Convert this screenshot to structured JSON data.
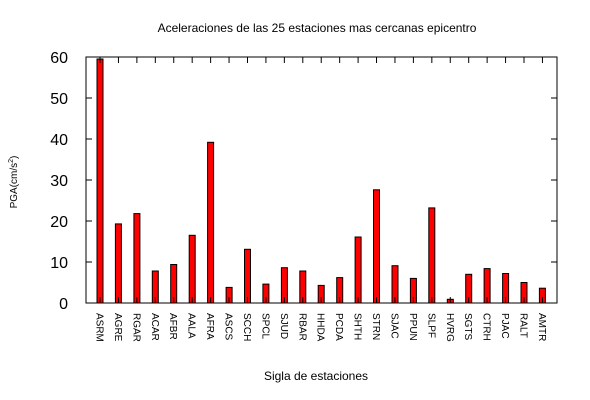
{
  "chart_data": {
    "type": "bar",
    "title": "Aceleraciones de las 25 estaciones mas cercanas epicentro",
    "xlabel": "Sigla de estaciones",
    "ylabel": {
      "base": "PGA(cm/s",
      "sup": "2",
      "close": ")"
    },
    "ylim": [
      0,
      60
    ],
    "yticks": [
      "0",
      "10",
      "20",
      "30",
      "40",
      "50",
      "60"
    ],
    "grid": false,
    "legend": "none",
    "categories": [
      "ASRM",
      "AGRE",
      "RGAR",
      "ACAR",
      "AFBR",
      "AALA",
      "AFRA",
      "ASCS",
      "SCCH",
      "SPCL",
      "SJUD",
      "RBAR",
      "HHDA",
      "PCDA",
      "SHTH",
      "STRN",
      "SJAC",
      "PPUN",
      "SLPF",
      "HVRG",
      "SGTS",
      "CTRH",
      "PJAC",
      "RALT",
      "AMTR"
    ],
    "values": [
      59.5,
      19.3,
      21.8,
      7.8,
      9.4,
      16.5,
      39.2,
      3.8,
      13.1,
      4.6,
      8.6,
      7.8,
      4.3,
      6.2,
      16.1,
      27.6,
      9.1,
      6.0,
      23.2,
      0.9,
      7.0,
      8.4,
      7.2,
      5.0,
      3.6
    ],
    "colors": {
      "bar_fill": "#ff0000",
      "bar_stroke": "#000000"
    }
  }
}
